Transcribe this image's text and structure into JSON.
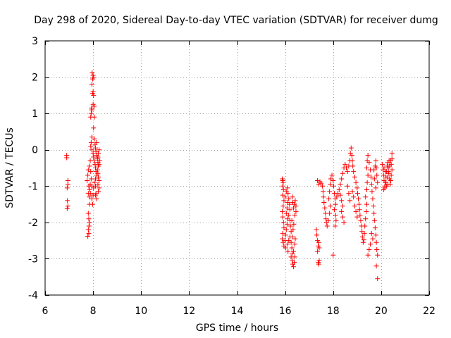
{
  "chart_data": {
    "type": "scatter",
    "title": "Day 298 of 2020, Sidereal Day-to-day VTEC variation (SDTVAR) for receiver dumg",
    "xlabel": "GPS time / hours",
    "ylabel": "SDTVAR / TECUs",
    "xlim": [
      6,
      22
    ],
    "ylim": [
      -4,
      3
    ],
    "xticks": [
      6,
      8,
      10,
      12,
      14,
      16,
      18,
      20,
      22
    ],
    "yticks": [
      -4,
      -3,
      -2,
      -1,
      0,
      1,
      2,
      3
    ],
    "xtick_labels": [
      "6",
      "8",
      "10",
      "12",
      "14",
      "16",
      "18",
      "20",
      "22"
    ],
    "ytick_labels": [
      "-4",
      "-3",
      "-2",
      "-1",
      "0",
      "1",
      "2",
      "3"
    ],
    "grid": true,
    "marker": "+",
    "color": "#ff0000",
    "series": [
      {
        "name": "SDTVAR",
        "points": [
          [
            6.9,
            -0.15
          ],
          [
            6.9,
            -0.22
          ],
          [
            6.95,
            -0.85
          ],
          [
            6.95,
            -0.95
          ],
          [
            6.92,
            -1.05
          ],
          [
            6.93,
            -1.4
          ],
          [
            6.95,
            -1.55
          ],
          [
            6.92,
            -1.62
          ],
          [
            7.8,
            -1.75
          ],
          [
            7.82,
            -1.9
          ],
          [
            7.85,
            -2.0
          ],
          [
            7.83,
            -2.1
          ],
          [
            7.8,
            -2.2
          ],
          [
            7.82,
            -2.3
          ],
          [
            7.78,
            -2.38
          ],
          [
            7.85,
            -1.5
          ],
          [
            7.8,
            -1.2
          ],
          [
            7.82,
            -1.0
          ],
          [
            7.75,
            -0.85
          ],
          [
            7.78,
            -0.7
          ],
          [
            7.8,
            -0.55
          ],
          [
            7.85,
            -0.45
          ],
          [
            7.88,
            -0.3
          ],
          [
            7.9,
            -0.6
          ],
          [
            7.92,
            -0.8
          ],
          [
            7.95,
            -1.0
          ],
          [
            7.9,
            -1.2
          ],
          [
            7.95,
            -1.35
          ],
          [
            7.98,
            -1.5
          ],
          [
            8.0,
            -1.25
          ],
          [
            8.02,
            -1.05
          ],
          [
            8.05,
            -0.9
          ],
          [
            7.9,
            0.9
          ],
          [
            7.92,
            1.0
          ],
          [
            7.95,
            1.1
          ],
          [
            7.93,
            1.15
          ],
          [
            8.0,
            1.25
          ],
          [
            8.02,
            1.5
          ],
          [
            7.98,
            1.55
          ],
          [
            8.0,
            1.6
          ],
          [
            7.95,
            1.8
          ],
          [
            7.98,
            1.95
          ],
          [
            8.0,
            2.05
          ],
          [
            7.96,
            2.12
          ],
          [
            8.02,
            2.0
          ],
          [
            8.05,
            1.2
          ],
          [
            8.05,
            0.9
          ],
          [
            8.02,
            0.6
          ],
          [
            7.95,
            0.35
          ],
          [
            7.92,
            0.2
          ],
          [
            7.9,
            0.1
          ],
          [
            7.95,
            0.0
          ],
          [
            8.0,
            -0.1
          ],
          [
            8.02,
            -0.2
          ],
          [
            8.05,
            -0.3
          ],
          [
            8.08,
            -0.4
          ],
          [
            8.1,
            -0.5
          ],
          [
            8.12,
            -0.6
          ],
          [
            8.15,
            -0.7
          ],
          [
            8.1,
            -0.8
          ],
          [
            8.05,
            0.3
          ],
          [
            8.08,
            0.15
          ],
          [
            8.1,
            0.05
          ],
          [
            8.12,
            -0.05
          ],
          [
            8.15,
            -0.15
          ],
          [
            8.18,
            -0.25
          ],
          [
            8.2,
            -0.35
          ],
          [
            8.22,
            -0.45
          ],
          [
            8.18,
            -0.55
          ],
          [
            8.2,
            -0.65
          ],
          [
            8.22,
            -0.75
          ],
          [
            8.25,
            -0.85
          ],
          [
            8.2,
            -0.95
          ],
          [
            8.25,
            -1.05
          ],
          [
            8.22,
            -1.15
          ],
          [
            8.25,
            0.0
          ],
          [
            8.22,
            -0.1
          ],
          [
            8.2,
            -0.2
          ],
          [
            8.28,
            -0.3
          ],
          [
            8.25,
            -0.4
          ],
          [
            8.1,
            -1.0
          ],
          [
            8.12,
            -1.2
          ],
          [
            8.15,
            -1.35
          ],
          [
            8.1,
            -1.25
          ],
          [
            7.88,
            -0.95
          ],
          [
            7.86,
            -1.1
          ],
          [
            7.84,
            -1.3
          ],
          [
            8.15,
            0.2
          ],
          [
            15.88,
            -0.8
          ],
          [
            15.9,
            -0.85
          ],
          [
            15.92,
            -0.9
          ],
          [
            15.9,
            -1.0
          ],
          [
            15.93,
            -1.1
          ],
          [
            15.9,
            -1.25
          ],
          [
            15.95,
            -1.4
          ],
          [
            15.92,
            -1.55
          ],
          [
            15.88,
            -1.7
          ],
          [
            15.9,
            -1.85
          ],
          [
            15.93,
            -2.0
          ],
          [
            15.95,
            -2.15
          ],
          [
            15.9,
            -2.3
          ],
          [
            15.88,
            -2.45
          ],
          [
            15.92,
            -2.55
          ],
          [
            15.95,
            -2.65
          ],
          [
            16.0,
            -2.5
          ],
          [
            16.02,
            -2.35
          ],
          [
            16.05,
            -2.2
          ],
          [
            16.08,
            -2.05
          ],
          [
            16.1,
            -1.9
          ],
          [
            16.05,
            -1.75
          ],
          [
            16.08,
            -1.6
          ],
          [
            16.1,
            -1.45
          ],
          [
            16.0,
            -1.3
          ],
          [
            16.05,
            -1.15
          ],
          [
            16.1,
            -1.05
          ],
          [
            16.12,
            -1.2
          ],
          [
            16.15,
            -1.35
          ],
          [
            16.18,
            -1.5
          ],
          [
            16.2,
            -1.65
          ],
          [
            16.15,
            -1.8
          ],
          [
            16.2,
            -1.95
          ],
          [
            16.22,
            -2.1
          ],
          [
            16.25,
            -2.25
          ],
          [
            16.2,
            -2.4
          ],
          [
            16.25,
            -2.55
          ],
          [
            16.28,
            -2.7
          ],
          [
            16.3,
            -2.85
          ],
          [
            16.25,
            -2.95
          ],
          [
            16.3,
            -3.05
          ],
          [
            16.32,
            -3.15
          ],
          [
            16.35,
            -3.22
          ],
          [
            16.38,
            -3.1
          ],
          [
            16.4,
            -2.95
          ],
          [
            16.35,
            -2.8
          ],
          [
            16.4,
            -2.6
          ],
          [
            16.42,
            -2.45
          ],
          [
            16.3,
            -1.3
          ],
          [
            16.32,
            -1.45
          ],
          [
            16.35,
            -1.6
          ],
          [
            16.38,
            -1.5
          ],
          [
            16.42,
            -1.4
          ],
          [
            16.45,
            -1.55
          ],
          [
            16.45,
            -1.7
          ],
          [
            16.4,
            -1.8
          ],
          [
            16.1,
            -2.6
          ],
          [
            16.15,
            -2.5
          ],
          [
            16.02,
            -2.7
          ],
          [
            16.12,
            -2.8
          ],
          [
            16.3,
            -2.4
          ],
          [
            16.33,
            -2.2
          ],
          [
            16.36,
            -2.05
          ],
          [
            16.28,
            -1.95
          ],
          [
            17.3,
            -2.2
          ],
          [
            17.32,
            -2.35
          ],
          [
            17.35,
            -2.5
          ],
          [
            17.38,
            -2.65
          ],
          [
            17.35,
            -2.8
          ],
          [
            17.4,
            -2.55
          ],
          [
            17.42,
            -2.7
          ],
          [
            17.38,
            -3.1
          ],
          [
            17.4,
            -3.15
          ],
          [
            17.42,
            -3.05
          ],
          [
            17.35,
            -0.85
          ],
          [
            17.4,
            -0.95
          ],
          [
            17.45,
            -0.88
          ],
          [
            17.5,
            -0.92
          ],
          [
            17.55,
            -1.0
          ],
          [
            17.58,
            -1.15
          ],
          [
            17.6,
            -1.3
          ],
          [
            17.62,
            -1.45
          ],
          [
            17.65,
            -1.6
          ],
          [
            17.68,
            -1.75
          ],
          [
            17.7,
            -1.9
          ],
          [
            17.72,
            -2.0
          ],
          [
            17.75,
            -2.1
          ],
          [
            17.8,
            -1.95
          ],
          [
            17.85,
            -1.75
          ],
          [
            17.88,
            -1.55
          ],
          [
            17.82,
            -1.35
          ],
          [
            17.85,
            -1.15
          ],
          [
            17.88,
            -0.95
          ],
          [
            17.9,
            -0.8
          ],
          [
            17.95,
            -0.7
          ],
          [
            18.0,
            -0.85
          ],
          [
            18.02,
            -1.0
          ],
          [
            18.05,
            -1.2
          ],
          [
            18.08,
            -1.35
          ],
          [
            18.1,
            -1.5
          ],
          [
            18.05,
            -1.65
          ],
          [
            18.1,
            -1.8
          ],
          [
            18.12,
            -1.95
          ],
          [
            18.08,
            -2.1
          ],
          [
            18.0,
            -2.9
          ],
          [
            18.15,
            -1.3
          ],
          [
            18.2,
            -1.2
          ],
          [
            18.25,
            -1.1
          ],
          [
            18.3,
            -1.25
          ],
          [
            18.35,
            -1.4
          ],
          [
            18.4,
            -1.55
          ],
          [
            18.35,
            -1.7
          ],
          [
            18.4,
            -1.85
          ],
          [
            18.45,
            -2.0
          ],
          [
            18.3,
            -0.95
          ],
          [
            18.35,
            -0.8
          ],
          [
            18.4,
            -0.65
          ],
          [
            18.45,
            -0.5
          ],
          [
            18.5,
            -0.4
          ],
          [
            18.55,
            -0.5
          ],
          [
            18.6,
            -0.6
          ],
          [
            18.65,
            -0.45
          ],
          [
            18.7,
            -0.3
          ],
          [
            18.72,
            -0.1
          ],
          [
            18.75,
            0.05
          ],
          [
            18.78,
            -0.15
          ],
          [
            18.8,
            -0.3
          ],
          [
            18.82,
            -0.45
          ],
          [
            18.85,
            -0.6
          ],
          [
            18.9,
            -0.75
          ],
          [
            18.95,
            -0.9
          ],
          [
            19.0,
            -1.05
          ],
          [
            19.02,
            -1.2
          ],
          [
            19.05,
            -1.35
          ],
          [
            19.08,
            -1.5
          ],
          [
            19.1,
            -1.65
          ],
          [
            19.12,
            -1.8
          ],
          [
            19.15,
            -1.95
          ],
          [
            19.18,
            -2.1
          ],
          [
            19.2,
            -2.25
          ],
          [
            19.22,
            -2.4
          ],
          [
            19.25,
            -2.55
          ],
          [
            19.28,
            -2.48
          ],
          [
            19.3,
            -2.3
          ],
          [
            19.32,
            -2.1
          ],
          [
            19.35,
            -1.9
          ],
          [
            19.38,
            -1.7
          ],
          [
            19.4,
            -1.5
          ],
          [
            19.35,
            -1.3
          ],
          [
            19.4,
            -1.1
          ],
          [
            19.42,
            -0.9
          ],
          [
            19.45,
            -0.7
          ],
          [
            19.4,
            -0.5
          ],
          [
            19.42,
            -0.3
          ],
          [
            19.45,
            -0.15
          ],
          [
            19.5,
            -0.35
          ],
          [
            19.55,
            -0.55
          ],
          [
            19.58,
            -0.75
          ],
          [
            19.6,
            -0.95
          ],
          [
            19.62,
            -1.15
          ],
          [
            19.65,
            -1.35
          ],
          [
            19.68,
            -1.55
          ],
          [
            19.7,
            -1.75
          ],
          [
            19.72,
            -1.95
          ],
          [
            19.75,
            -2.15
          ],
          [
            19.78,
            -2.35
          ],
          [
            19.8,
            -2.55
          ],
          [
            19.82,
            -2.75
          ],
          [
            19.85,
            -2.9
          ],
          [
            19.8,
            -3.2
          ],
          [
            19.85,
            -3.55
          ],
          [
            19.6,
            -2.3
          ],
          [
            19.65,
            -2.45
          ],
          [
            19.55,
            -2.6
          ],
          [
            19.5,
            -2.75
          ],
          [
            19.45,
            -2.9
          ],
          [
            18.9,
            -1.55
          ],
          [
            18.95,
            -1.7
          ],
          [
            19.0,
            -1.85
          ],
          [
            18.85,
            -1.3
          ],
          [
            18.8,
            -1.15
          ],
          [
            18.6,
            -1.0
          ],
          [
            18.65,
            -1.2
          ],
          [
            18.7,
            -1.4
          ],
          [
            19.75,
            -0.45
          ],
          [
            19.78,
            -0.3
          ],
          [
            19.8,
            -0.5
          ],
          [
            19.82,
            -0.7
          ],
          [
            19.85,
            -0.9
          ],
          [
            19.7,
            -0.55
          ],
          [
            19.72,
            -0.8
          ],
          [
            19.78,
            -1.05
          ],
          [
            20.05,
            -0.4
          ],
          [
            20.08,
            -0.55
          ],
          [
            20.1,
            -0.7
          ],
          [
            20.12,
            -0.85
          ],
          [
            20.15,
            -1.0
          ],
          [
            20.18,
            -0.9
          ],
          [
            20.2,
            -0.75
          ],
          [
            20.22,
            -0.6
          ],
          [
            20.25,
            -0.45
          ],
          [
            20.28,
            -0.35
          ],
          [
            20.3,
            -0.5
          ],
          [
            20.32,
            -0.65
          ],
          [
            20.35,
            -0.8
          ],
          [
            20.38,
            -0.95
          ],
          [
            20.4,
            -0.85
          ],
          [
            20.42,
            -0.7
          ],
          [
            20.45,
            -0.55
          ],
          [
            20.42,
            -0.4
          ],
          [
            20.45,
            -0.25
          ],
          [
            20.45,
            -0.1
          ],
          [
            20.4,
            -0.3
          ],
          [
            20.35,
            -0.45
          ],
          [
            20.3,
            -0.6
          ],
          [
            20.25,
            -0.75
          ],
          [
            20.2,
            -0.9
          ],
          [
            20.15,
            -1.05
          ],
          [
            20.1,
            -1.1
          ],
          [
            20.12,
            -0.5
          ],
          [
            20.18,
            -0.6
          ],
          [
            20.22,
            -1.0
          ],
          [
            20.28,
            -0.95
          ],
          [
            20.33,
            -0.3
          ]
        ]
      }
    ]
  }
}
